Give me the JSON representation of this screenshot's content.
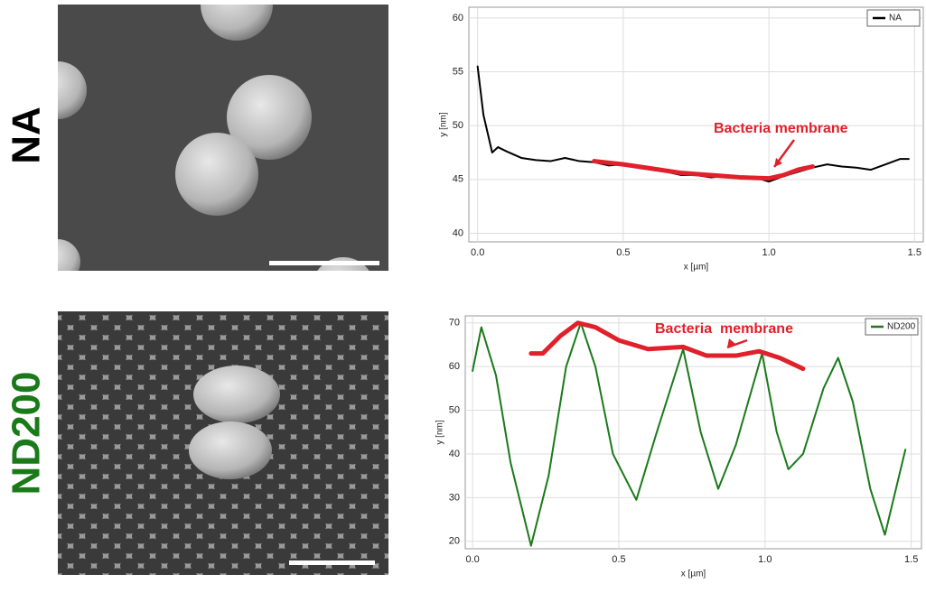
{
  "row_labels": [
    "NA",
    "ND200"
  ],
  "chart_data": [
    {
      "type": "line",
      "xlabel": "x [µm]",
      "ylabel": "y [nm]",
      "xlim": [
        -0.03,
        1.53
      ],
      "ylim": [
        39.2,
        61
      ],
      "xticks": [
        {
          "value": 0,
          "label": "0.0"
        },
        0.5,
        {
          "value": 1,
          "label": "1.0"
        },
        1.5
      ],
      "yticks": [
        40,
        45,
        50,
        55,
        60
      ],
      "grid": true,
      "legend": "upper right",
      "annotation": "Bacteria membrane",
      "annotation_color": "#e0202a",
      "series": [
        {
          "name": "NA",
          "color": "#000000",
          "x": [
            0,
            0.02,
            0.05,
            0.07,
            0.1,
            0.15,
            0.2,
            0.25,
            0.3,
            0.35,
            0.4,
            0.45,
            0.5,
            0.55,
            0.6,
            0.65,
            0.7,
            0.75,
            0.8,
            0.85,
            0.9,
            0.95,
            1.0,
            1.05,
            1.1,
            1.15,
            1.2,
            1.25,
            1.3,
            1.35,
            1.4,
            1.45,
            1.48
          ],
          "values": [
            55.5,
            51,
            47.5,
            48,
            47.6,
            47,
            46.8,
            46.7,
            47,
            46.7,
            46.6,
            46.3,
            46.4,
            46.1,
            45.9,
            45.7,
            45.4,
            45.4,
            45.2,
            45.3,
            45.1,
            45.2,
            44.8,
            45.3,
            45.7,
            46.1,
            46.4,
            46.2,
            46.1,
            45.9,
            46.4,
            46.9,
            46.9
          ]
        },
        {
          "color": "#e0202a",
          "x": [
            0.4,
            0.5,
            0.6,
            0.7,
            0.8,
            0.9,
            1.0,
            1.05,
            1.1,
            1.15
          ],
          "values": [
            46.7,
            46.4,
            46,
            45.6,
            45.4,
            45.2,
            45.1,
            45.4,
            45.9,
            46.2
          ]
        }
      ]
    },
    {
      "type": "line",
      "xlabel": "x [µm]",
      "ylabel": "y [nm]",
      "xlim": [
        -0.025,
        1.535
      ],
      "ylim": [
        18.3,
        71.6
      ],
      "xticks": [
        {
          "value": 0,
          "label": "0.0"
        },
        0.5,
        {
          "value": 1,
          "label": "1.0"
        },
        1.5
      ],
      "yticks": [
        20,
        30,
        40,
        50,
        60,
        70
      ],
      "grid": true,
      "legend": "upper right",
      "annotation": "Bacteria  membrane",
      "annotation_color": "#e0202a",
      "series": [
        {
          "name": "ND200",
          "color": "#1a7a1a",
          "x": [
            0,
            0.03,
            0.08,
            0.13,
            0.2,
            0.26,
            0.32,
            0.37,
            0.42,
            0.48,
            0.56,
            0.63,
            0.72,
            0.78,
            0.84,
            0.9,
            0.99,
            1.04,
            1.08,
            1.13,
            1.2,
            1.25,
            1.3,
            1.36,
            1.41,
            1.48
          ],
          "values": [
            59,
            69,
            58,
            38,
            19,
            35,
            60,
            70,
            60,
            40,
            29.5,
            45,
            64,
            45,
            32,
            42,
            63,
            45,
            36.5,
            40,
            55,
            62,
            52,
            32,
            21.5,
            41
          ]
        },
        {
          "color": "#e0202a",
          "x": [
            0.2,
            0.24,
            0.3,
            0.36,
            0.42,
            0.5,
            0.6,
            0.72,
            0.8,
            0.9,
            0.98,
            1.05,
            1.13
          ],
          "values": [
            63,
            63,
            67,
            70,
            69,
            66,
            64,
            64.5,
            62.5,
            62.5,
            63.5,
            62,
            59.5
          ]
        }
      ]
    }
  ]
}
